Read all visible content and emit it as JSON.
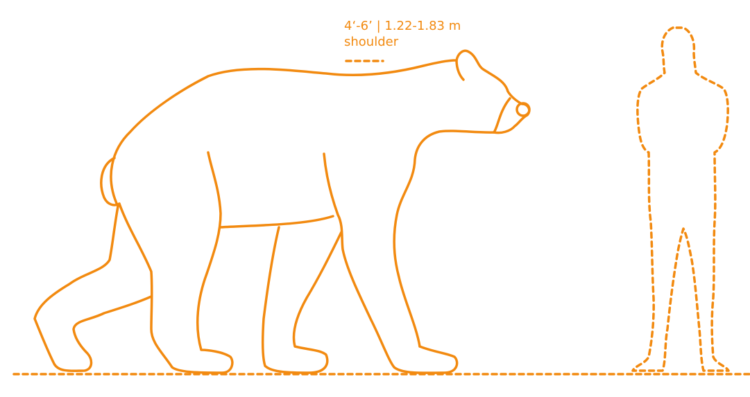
{
  "accent_color": "#F28A10",
  "measurement": {
    "height_text": "4‘-6’ | 1.22-1.83 m",
    "caption": "shoulder"
  }
}
